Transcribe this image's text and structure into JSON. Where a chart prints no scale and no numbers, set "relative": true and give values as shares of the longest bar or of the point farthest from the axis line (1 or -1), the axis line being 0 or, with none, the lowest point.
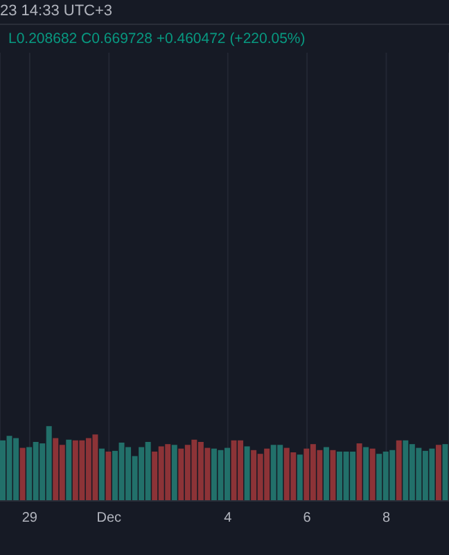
{
  "chart_data": {
    "type": "bar",
    "relative": true,
    "grid": "x",
    "annotations": [
      "23 14:33 UTC+3",
      "L0.208682 C0.669728 +0.460472 (+220.05%)"
    ],
    "categories": [
      null,
      null,
      null,
      null,
      "29",
      null,
      null,
      null,
      null,
      null,
      null,
      null,
      null,
      null,
      null,
      null,
      "Dec",
      null,
      null,
      null,
      null,
      null,
      null,
      null,
      null,
      null,
      null,
      null,
      null,
      null,
      null,
      null,
      null,
      null,
      "4",
      null,
      null,
      null,
      null,
      null,
      null,
      null,
      null,
      null,
      null,
      null,
      "6",
      null,
      null,
      null,
      null,
      null,
      null,
      null,
      null,
      null,
      null,
      null,
      "8",
      null,
      null,
      null,
      null,
      null,
      null,
      null,
      null,
      null
    ],
    "values": [
      0.81,
      0.87,
      0.84,
      0.71,
      0.72,
      0.79,
      0.77,
      1,
      0.84,
      0.75,
      0.82,
      0.81,
      0.81,
      0.84,
      0.89,
      0.7,
      0.66,
      0.67,
      0.78,
      0.72,
      0.6,
      0.72,
      0.79,
      0.66,
      0.73,
      0.76,
      0.75,
      0.7,
      0.75,
      0.82,
      0.79,
      0.71,
      0.7,
      0.68,
      0.71,
      0.81,
      0.81,
      0.73,
      0.68,
      0.63,
      0.7,
      0.75,
      0.75,
      0.71,
      0.65,
      0.62,
      0.7,
      0.76,
      0.68,
      0.72,
      0.68,
      0.66,
      0.66,
      0.66,
      0.77,
      0.72,
      0.7,
      0.63,
      0.66,
      0.68,
      0.81,
      0.81,
      0.76,
      0.71,
      0.67,
      0.7,
      0.75,
      0.76
    ],
    "colors": [
      "#22706a",
      "#22706a",
      "#22706a",
      "#8c3337",
      "#22706a",
      "#22706a",
      "#22706a",
      "#22706a",
      "#8c3337",
      "#8c3337",
      "#22706a",
      "#8c3337",
      "#8c3337",
      "#8c3337",
      "#8c3337",
      "#22706a",
      "#8c3337",
      "#22706a",
      "#22706a",
      "#22706a",
      "#22706a",
      "#22706a",
      "#22706a",
      "#8c3337",
      "#8c3337",
      "#8c3337",
      "#22706a",
      "#8c3337",
      "#8c3337",
      "#8c3337",
      "#8c3337",
      "#8c3337",
      "#22706a",
      "#22706a",
      "#22706a",
      "#8c3337",
      "#8c3337",
      "#22706a",
      "#8c3337",
      "#8c3337",
      "#8c3337",
      "#22706a",
      "#22706a",
      "#8c3337",
      "#8c3337",
      "#22706a",
      "#8c3337",
      "#8c3337",
      "#8c3337",
      "#22706a",
      "#8c3337",
      "#22706a",
      "#22706a",
      "#22706a",
      "#8c3337",
      "#22706a",
      "#8c3337",
      "#22706a",
      "#22706a",
      "#22706a",
      "#8c3337",
      "#22706a",
      "#22706a",
      "#22706a",
      "#22706a",
      "#22706a",
      "#8c3337",
      "#22706a"
    ]
  }
}
